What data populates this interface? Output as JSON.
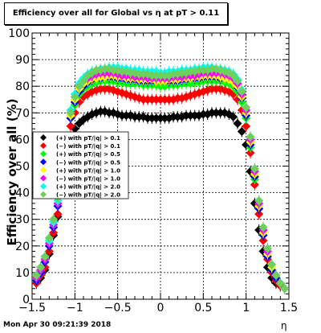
{
  "title": "Efficiency over all for Global vs  η at pT > 0.11",
  "footer_date": "Mon Apr 30 09:21:39 2018",
  "chart_data": {
    "type": "scatter",
    "title": "Efficiency over all for Global vs  η at pT > 0.11",
    "xlabel": "η",
    "ylabel": "Efficiency over all (%)",
    "xlim": [
      -1.5,
      1.5
    ],
    "ylim": [
      0,
      100
    ],
    "x_ticks": [
      -1.5,
      -1,
      -0.5,
      0,
      0.5,
      1,
      1.5
    ],
    "x_tick_labels": [
      "−1.5",
      "−1",
      "−0.5",
      "0",
      "0.5",
      "1",
      "1.5"
    ],
    "y_ticks": [
      0,
      10,
      20,
      30,
      40,
      50,
      60,
      70,
      80,
      90,
      100
    ],
    "y_tick_labels": [
      "0",
      "10",
      "20",
      "30",
      "40",
      "50",
      "60",
      "70",
      "80",
      "90",
      "100"
    ],
    "grid": true,
    "legend_position": "left",
    "x": [
      -1.45,
      -1.4,
      -1.35,
      -1.3,
      -1.25,
      -1.2,
      -1.15,
      -1.1,
      -1.05,
      -1.0,
      -0.95,
      -0.9,
      -0.85,
      -0.8,
      -0.75,
      -0.7,
      -0.65,
      -0.6,
      -0.55,
      -0.5,
      -0.45,
      -0.4,
      -0.35,
      -0.3,
      -0.25,
      -0.2,
      -0.15,
      -0.1,
      -0.05,
      0.0,
      0.05,
      0.1,
      0.15,
      0.2,
      0.25,
      0.3,
      0.35,
      0.4,
      0.45,
      0.5,
      0.55,
      0.6,
      0.65,
      0.7,
      0.75,
      0.8,
      0.85,
      0.9,
      0.95,
      1.0,
      1.05,
      1.1,
      1.15,
      1.2,
      1.25,
      1.3,
      1.35,
      1.4,
      1.45
    ],
    "series": [
      {
        "name": "(+) with pT/|q| > 0.1",
        "color": "#000000",
        "values": [
          6,
          8,
          11,
          17,
          24,
          31,
          40,
          52,
          60,
          64,
          66,
          67.5,
          68.5,
          69.5,
          70,
          70.5,
          70.5,
          70,
          70,
          69.5,
          69,
          69,
          69,
          68.5,
          68.5,
          68.5,
          68,
          68,
          68,
          68,
          68,
          68,
          68.5,
          68.5,
          68.5,
          69,
          69,
          69,
          69,
          69.5,
          69.5,
          70,
          70,
          70,
          70,
          69.5,
          68.5,
          66,
          63,
          58,
          48,
          36,
          26,
          18,
          12,
          8,
          6,
          5,
          4
        ]
      },
      {
        "name": "(−) with pT/|q| > 0.1",
        "color": "#ff0000",
        "values": [
          6,
          9,
          12,
          18,
          25,
          32,
          43,
          55,
          65,
          70,
          74,
          76,
          77,
          78,
          78.5,
          79,
          79,
          79,
          78.5,
          78,
          77.5,
          77,
          76.5,
          76,
          75.5,
          75,
          75,
          75,
          75,
          75,
          75,
          75,
          75,
          75.5,
          75.5,
          76,
          76.5,
          77,
          77.5,
          78,
          78.5,
          79,
          79,
          79,
          78.5,
          78,
          77,
          75,
          71,
          65,
          55,
          43,
          32,
          22,
          15,
          10,
          7,
          5,
          4
        ]
      },
      {
        "name": "(+) with pT/|q| > 0.5",
        "color": "#00ff00",
        "values": [
          7,
          10,
          14,
          20,
          27,
          35,
          46,
          58,
          68,
          73,
          77,
          79,
          80,
          81,
          81.5,
          82,
          82,
          82,
          82,
          81.5,
          81.5,
          81,
          81,
          81,
          81,
          80.5,
          80.5,
          80.5,
          80.5,
          80,
          80,
          80.5,
          80.5,
          80.5,
          81,
          81,
          81,
          81.5,
          81.5,
          82,
          82,
          82,
          82,
          82,
          81.5,
          81,
          80,
          78,
          74,
          68,
          57,
          45,
          34,
          24,
          16,
          11,
          8,
          6,
          4
        ]
      },
      {
        "name": "(−) with pT/|q| > 0.5",
        "color": "#0000ff",
        "values": [
          7,
          10,
          14,
          20,
          27,
          35,
          46,
          58,
          68,
          74,
          78,
          80,
          81.5,
          82.5,
          83,
          83,
          83.5,
          83.5,
          83.5,
          83,
          83,
          82.5,
          82.5,
          82.5,
          82,
          82,
          82,
          82,
          82,
          82,
          82,
          82,
          82,
          82,
          82.5,
          82.5,
          83,
          83,
          83,
          83.5,
          83.5,
          83.5,
          83.5,
          83,
          83,
          82.5,
          81.5,
          79.5,
          75.5,
          69,
          58,
          46,
          34,
          24,
          16,
          11,
          8,
          6,
          4
        ]
      },
      {
        "name": "(+) with pT/|q| > 1.0",
        "color": "#ffff00",
        "values": [
          8,
          11,
          15,
          21,
          28,
          36,
          47,
          59,
          69,
          75,
          79,
          81,
          82,
          83,
          83,
          83.5,
          83.5,
          84,
          84,
          83.5,
          83.5,
          83,
          83,
          83,
          82.5,
          82.5,
          82.5,
          82.5,
          82,
          82,
          82,
          82.5,
          82.5,
          82.5,
          83,
          83,
          83,
          83.5,
          83.5,
          84,
          84,
          84,
          84,
          83.5,
          83,
          82.5,
          81.5,
          80,
          76,
          70,
          59,
          47,
          35,
          25,
          17,
          12,
          9,
          6,
          4
        ]
      },
      {
        "name": "(−) with pT/|q| > 1.0",
        "color": "#ff00ff",
        "values": [
          8,
          11,
          15,
          21,
          28,
          36,
          47,
          59,
          70,
          76,
          80,
          82,
          83,
          84,
          84.5,
          85,
          85,
          85,
          85,
          84.5,
          84,
          84,
          84,
          83.5,
          83.5,
          83.5,
          83,
          83,
          83,
          83,
          83,
          83,
          83.5,
          83.5,
          83.5,
          84,
          84,
          84,
          84.5,
          85,
          85,
          85,
          85,
          85,
          84.5,
          84,
          83,
          81,
          77,
          71,
          60,
          48,
          36,
          26,
          18,
          13,
          9,
          6,
          4
        ]
      },
      {
        "name": "(+) with pT/|q| > 2.0",
        "color": "#00ffff",
        "values": [
          9,
          12,
          16,
          22,
          29,
          37,
          48,
          60,
          71,
          77,
          81,
          83,
          84.5,
          85.5,
          86,
          86.5,
          86.5,
          87,
          87,
          87,
          86.5,
          86.5,
          86,
          86,
          86,
          85.5,
          85.5,
          85.5,
          85.5,
          85,
          85,
          85.5,
          85.5,
          85.5,
          86,
          86,
          86,
          86.5,
          86.5,
          87,
          87,
          87,
          86.5,
          86.5,
          86,
          85.5,
          84.5,
          82.5,
          78.5,
          72,
          61,
          49,
          37,
          27,
          19,
          13,
          9,
          6,
          4
        ]
      },
      {
        "name": "(−) with pT/|q| > 2.0",
        "color": "#6ecf5a",
        "values": [
          9,
          12,
          16,
          23,
          30,
          38,
          49,
          61,
          70,
          76,
          80,
          82,
          84,
          85,
          86,
          86,
          86.5,
          86.5,
          86,
          86,
          85.5,
          85.5,
          85,
          85,
          84.5,
          84.5,
          84.5,
          84,
          84,
          84,
          84,
          84,
          84.5,
          84.5,
          85,
          85,
          85.5,
          85.5,
          86,
          86,
          86,
          86.5,
          86.5,
          86,
          85.5,
          85,
          84,
          82,
          78,
          72,
          61,
          49,
          37,
          27,
          19,
          13,
          9,
          6,
          4
        ]
      }
    ]
  }
}
